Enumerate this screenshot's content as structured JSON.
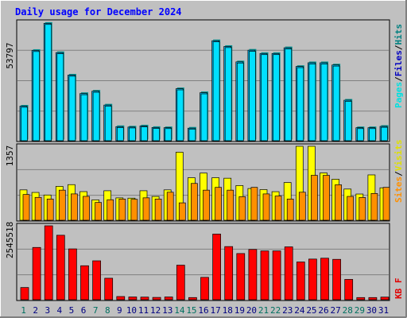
{
  "title": "Daily usage for December 2024",
  "colors": {
    "background": "#c0c0c0",
    "plot_bg": "#c0c0c0",
    "grid": "#808080",
    "title": "#0000ff",
    "hits": "#00c0ff",
    "hits_side": "#009090",
    "files": "#00e0ff",
    "pages": "#00ffff",
    "visits": "#ffff00",
    "sites": "#ff9000",
    "kbytes": "#ff0000",
    "weekday_label": "#000080",
    "weekend_label": "#007060",
    "legend_pages": "#00e0e0",
    "legend_files": "#0000c0",
    "legend_hits": "#008080",
    "legend_sites": "#ff9000",
    "legend_visits": "#e0e000",
    "legend_kbf": "#e00000"
  },
  "legend": {
    "pages": "Pages",
    "files": "Files",
    "hits": "Hits",
    "sep": "/",
    "sites": "Sites",
    "visits": "Visits",
    "kbf": "KB F"
  },
  "axis_max_labels": {
    "hits": "53797",
    "visits": "1357",
    "kbytes": "2545518"
  },
  "weekend_days": [
    1,
    7,
    8,
    14,
    15,
    21,
    22,
    28,
    29
  ],
  "chart_data": [
    {
      "type": "bar",
      "title": "Daily usage for December 2024",
      "ylim": [
        0,
        53797
      ],
      "categories": [
        "1",
        "2",
        "3",
        "4",
        "5",
        "6",
        "7",
        "8",
        "9",
        "10",
        "11",
        "12",
        "13",
        "14",
        "15",
        "16",
        "17",
        "18",
        "19",
        "20",
        "21",
        "22",
        "23",
        "24",
        "25",
        "26",
        "27",
        "28",
        "29",
        "30",
        "31"
      ],
      "series": [
        {
          "name": "Hits",
          "values": [
            15700,
            41000,
            53300,
            40000,
            29800,
            21400,
            22500,
            16200,
            6400,
            6200,
            6700,
            6000,
            5900,
            23600,
            5700,
            21800,
            45400,
            42800,
            35800,
            41100,
            39600,
            39600,
            42200,
            33700,
            35400,
            35400,
            34400,
            18400,
            5900,
            5900,
            6500
          ]
        },
        {
          "name": "Files",
          "values": [
            15200,
            40500,
            52800,
            39500,
            29300,
            20900,
            22000,
            15700,
            6000,
            5800,
            6300,
            5600,
            5500,
            23100,
            5300,
            21300,
            44900,
            42300,
            35300,
            40600,
            39100,
            39100,
            41700,
            33200,
            34900,
            34900,
            33900,
            17900,
            5500,
            5500,
            6100
          ]
        },
        {
          "name": "Pages",
          "values": [
            14500,
            39800,
            52000,
            38800,
            28600,
            20200,
            21300,
            15000,
            5600,
            5400,
            5900,
            5200,
            5100,
            22400,
            4900,
            20600,
            44200,
            41600,
            34600,
            39900,
            38400,
            38400,
            41000,
            32500,
            34200,
            34200,
            33200,
            17200,
            5100,
            5100,
            5700
          ]
        }
      ]
    },
    {
      "type": "bar",
      "ylim": [
        0,
        1357
      ],
      "categories": [
        "1",
        "2",
        "3",
        "4",
        "5",
        "6",
        "7",
        "8",
        "9",
        "10",
        "11",
        "12",
        "13",
        "14",
        "15",
        "16",
        "17",
        "18",
        "19",
        "20",
        "21",
        "22",
        "23",
        "24",
        "25",
        "26",
        "27",
        "28",
        "29",
        "30",
        "31"
      ],
      "series": [
        {
          "name": "Visits",
          "values": [
            557,
            510,
            463,
            621,
            653,
            525,
            373,
            541,
            410,
            405,
            541,
            436,
            557,
            1248,
            780,
            865,
            780,
            771,
            636,
            582,
            562,
            524,
            692,
            1357,
            1357,
            868,
            752,
            572,
            481,
            832,
            595
          ]
        },
        {
          "name": "Sites",
          "values": [
            472,
            419,
            389,
            552,
            483,
            438,
            326,
            376,
            389,
            384,
            411,
            389,
            514,
            319,
            675,
            552,
            603,
            552,
            432,
            603,
            483,
            444,
            389,
            514,
            824,
            824,
            651,
            437,
            417,
            491,
            603
          ]
        }
      ]
    },
    {
      "type": "bar",
      "ylim": [
        0,
        2545518
      ],
      "categories": [
        "1",
        "2",
        "3",
        "4",
        "5",
        "6",
        "7",
        "8",
        "9",
        "10",
        "11",
        "12",
        "13",
        "14",
        "15",
        "16",
        "17",
        "18",
        "19",
        "20",
        "21",
        "22",
        "23",
        "24",
        "25",
        "26",
        "27",
        "28",
        "29",
        "30",
        "31"
      ],
      "series": [
        {
          "name": "KBytes",
          "values": [
            420000,
            1800000,
            2545518,
            2220000,
            1750000,
            1170000,
            1340000,
            740000,
            110000,
            95000,
            90000,
            80000,
            95000,
            1190000,
            75000,
            770000,
            2260000,
            1830000,
            1590000,
            1730000,
            1680000,
            1680000,
            1820000,
            1300000,
            1400000,
            1430000,
            1390000,
            700000,
            75000,
            75000,
            90000
          ]
        }
      ]
    }
  ]
}
